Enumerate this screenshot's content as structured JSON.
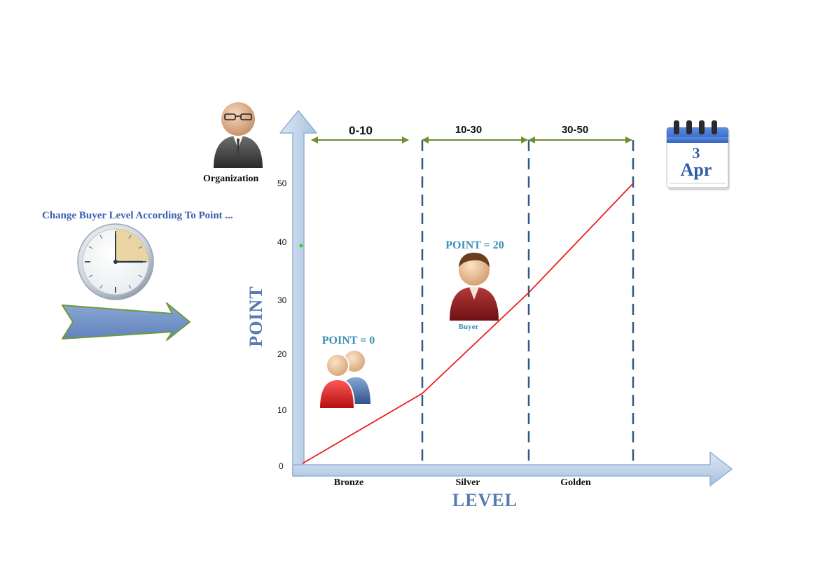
{
  "caption": "Change Buyer Level According To Point ...",
  "organization_label": "Organization",
  "calendar": {
    "day": "3",
    "month": "Apr"
  },
  "ranges": [
    "0-10",
    "10-30",
    "30-50"
  ],
  "annotations": {
    "point_bronze": "POINT = 0",
    "point_silver": "POINT = 20",
    "buyer_label": "Buyer"
  },
  "colors": {
    "axis": "#b7cde6",
    "line": "#e82020",
    "divider": "#2e5a8a",
    "range_arrow": "#6e8f2e",
    "caption": "#3a5fb0"
  },
  "chart_data": {
    "type": "line",
    "ylabel": "POINT",
    "xlabel": "LEVEL",
    "categories": [
      "Bronze",
      "Silver",
      "Golden"
    ],
    "y_ticks": [
      "0",
      "10",
      "20",
      "30",
      "40",
      "50"
    ],
    "ylim": [
      0,
      50
    ],
    "x_boundaries": [
      0,
      10,
      30,
      50
    ],
    "series": [
      {
        "x": [
          0,
          10,
          30,
          50
        ],
        "y": [
          0,
          12.5,
          30.5,
          50
        ]
      }
    ]
  }
}
